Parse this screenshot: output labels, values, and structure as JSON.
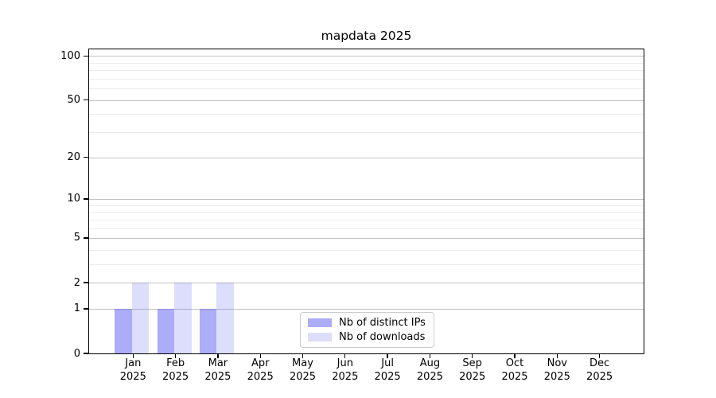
{
  "figure": {
    "title": "mapdata 2025"
  },
  "chart_data": {
    "type": "bar",
    "title": "mapdata 2025",
    "x_axis": {
      "categories": [
        "Jan",
        "Feb",
        "Mar",
        "Apr",
        "May",
        "Jun",
        "Jul",
        "Aug",
        "Sep",
        "Oct",
        "Nov",
        "Dec"
      ],
      "sub_label": "2025"
    },
    "y_axis": {
      "scale": "log1p",
      "ticks": [
        0,
        1,
        2,
        5,
        10,
        20,
        50,
        100
      ],
      "minor_ticks": [
        3,
        4,
        6,
        7,
        8,
        9,
        30,
        40,
        60,
        70,
        80,
        90
      ],
      "ylim": [
        0,
        111
      ],
      "grid": true
    },
    "series": [
      {
        "name": "Nb of distinct IPs",
        "color": "rgba(85,85,238,0.49)",
        "values": [
          1,
          1,
          1,
          0,
          0,
          0,
          0,
          0,
          0,
          0,
          0,
          0
        ]
      },
      {
        "name": "Nb of downloads",
        "color": "rgba(85,85,238,0.20)",
        "values": [
          2,
          2,
          2,
          0,
          0,
          0,
          0,
          0,
          0,
          0,
          0,
          0
        ]
      }
    ],
    "legend": {
      "position": "lower center",
      "entries": [
        "Nb of distinct IPs",
        "Nb of downloads"
      ]
    }
  }
}
